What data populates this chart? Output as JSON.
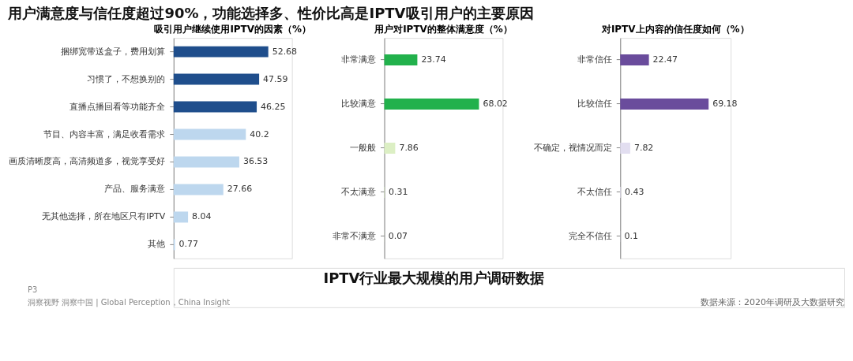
{
  "chart_data": [
    {
      "type": "other",
      "title": "用户满意度与信任度超过90%，功能选择多、性价比高是IPTV吸引用户的主要原因",
      "annotations": [
        "IPTV行业最大规模的用户调研数据",
        "数据来源：2020年调研及大数据研究",
        "P3",
        "洞察视野  洞察中国 | Global Perception，China Insight"
      ]
    },
    {
      "type": "bar",
      "orientation": "horizontal",
      "title": "吸引用户继续使用IPTV的因素（%）",
      "categories": [
        "捆绑宽带送盒子，费用划算",
        "习惯了，不想换别的",
        "直播点播回看等功能齐全",
        "节目、内容丰富，满足收看需求",
        "画质清晰度高，高清频道多，视觉享受好",
        "产品、服务满意",
        "无其他选择，所在地区只有IPTV",
        "其他"
      ],
      "values": [
        52.68,
        47.59,
        46.25,
        40.2,
        36.53,
        27.66,
        8.04,
        0.77
      ],
      "colors": [
        "#1f4e8c",
        "#1f4e8c",
        "#1f4e8c",
        "#bdd7ee",
        "#bdd7ee",
        "#bdd7ee",
        "#bdd7ee",
        "#bdd7ee"
      ],
      "data_labels": true
    },
    {
      "type": "bar",
      "orientation": "horizontal",
      "title": "用户对IPTV的整体满意度（%）",
      "categories": [
        "非常满意",
        "比较满意",
        "一般般",
        "不太满意",
        "非常不满意"
      ],
      "values": [
        23.74,
        68.02,
        7.86,
        0.31,
        0.07
      ],
      "colors": [
        "#22b14c",
        "#22b14c",
        "#dcefc4",
        "#dcefc4",
        "#dcefc4"
      ],
      "data_labels": true
    },
    {
      "type": "bar",
      "orientation": "horizontal",
      "title": "对IPTV上内容的信任度如何（%）",
      "categories": [
        "非常信任",
        "比较信任",
        "不确定，视情况而定",
        "不太信任",
        "完全不信任"
      ],
      "values": [
        22.47,
        69.18,
        7.82,
        0.43,
        0.1
      ],
      "colors": [
        "#6a4c9c",
        "#6a4c9c",
        "#e2def0",
        "#e2def0",
        "#e2def0"
      ],
      "data_labels": true
    }
  ]
}
